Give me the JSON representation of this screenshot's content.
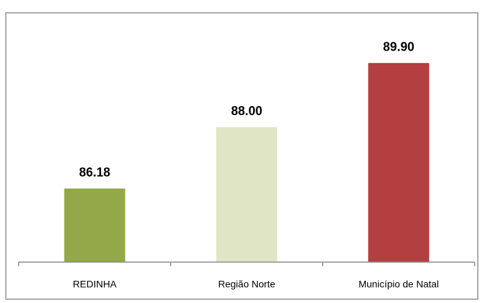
{
  "chart_data": {
    "type": "bar",
    "categories": [
      "REDINHA",
      "Região Norte",
      "Município de Natal"
    ],
    "values": [
      86.18,
      88.0,
      89.9
    ],
    "value_labels": [
      "86.18",
      "88.00",
      "89.90"
    ],
    "colors": [
      "#93a848",
      "#e0e6c5",
      "#b33f40"
    ],
    "ylim": [
      84,
      90
    ]
  }
}
